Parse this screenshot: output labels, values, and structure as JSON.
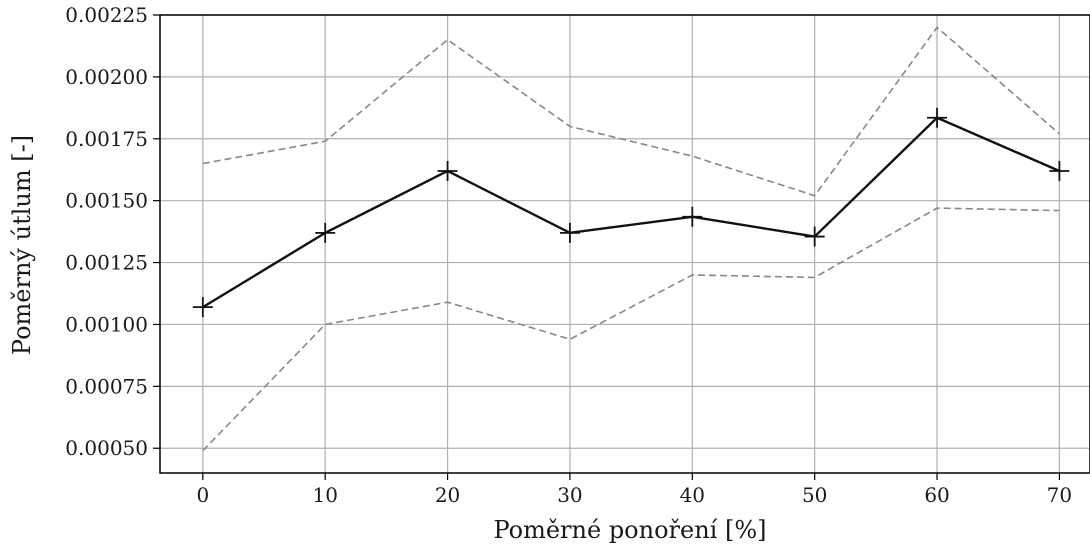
{
  "chart_data": {
    "type": "line",
    "title": "",
    "xlabel": "Poměrné ponoření [%]",
    "ylabel": "Poměrný útlum [-]",
    "x": [
      0,
      10,
      20,
      30,
      40,
      50,
      60,
      70
    ],
    "xlim": [
      -3.5,
      72.5
    ],
    "ylim": [
      0.0004,
      0.00225
    ],
    "x_ticks": [
      0,
      10,
      20,
      30,
      40,
      50,
      60,
      70
    ],
    "x_tick_labels": [
      "0",
      "10",
      "20",
      "30",
      "40",
      "50",
      "60",
      "70"
    ],
    "y_ticks": [
      0.0005,
      0.00075,
      0.001,
      0.00125,
      0.0015,
      0.00175,
      0.002,
      0.00225
    ],
    "y_tick_labels": [
      "0.00050",
      "0.00075",
      "0.00100",
      "0.00125",
      "0.00150",
      "0.00175",
      "0.00200",
      "0.00225"
    ],
    "grid": true,
    "series": [
      {
        "values": [
          0.00107,
          0.00137,
          0.00162,
          0.00137,
          0.001435,
          0.001355,
          0.001835,
          0.00162
        ],
        "color": "#111111",
        "style": "solid",
        "marker": "plus"
      },
      {
        "values": [
          0.00165,
          0.00174,
          0.00215,
          0.0018,
          0.00168,
          0.00152,
          0.0022,
          0.00177
        ],
        "color": "#888888",
        "style": "dashed",
        "marker": "none"
      },
      {
        "values": [
          0.00049,
          0.001,
          0.00109,
          0.00094,
          0.0012,
          0.00119,
          0.00147,
          0.00146
        ],
        "color": "#888888",
        "style": "dashed",
        "marker": "none"
      }
    ]
  }
}
